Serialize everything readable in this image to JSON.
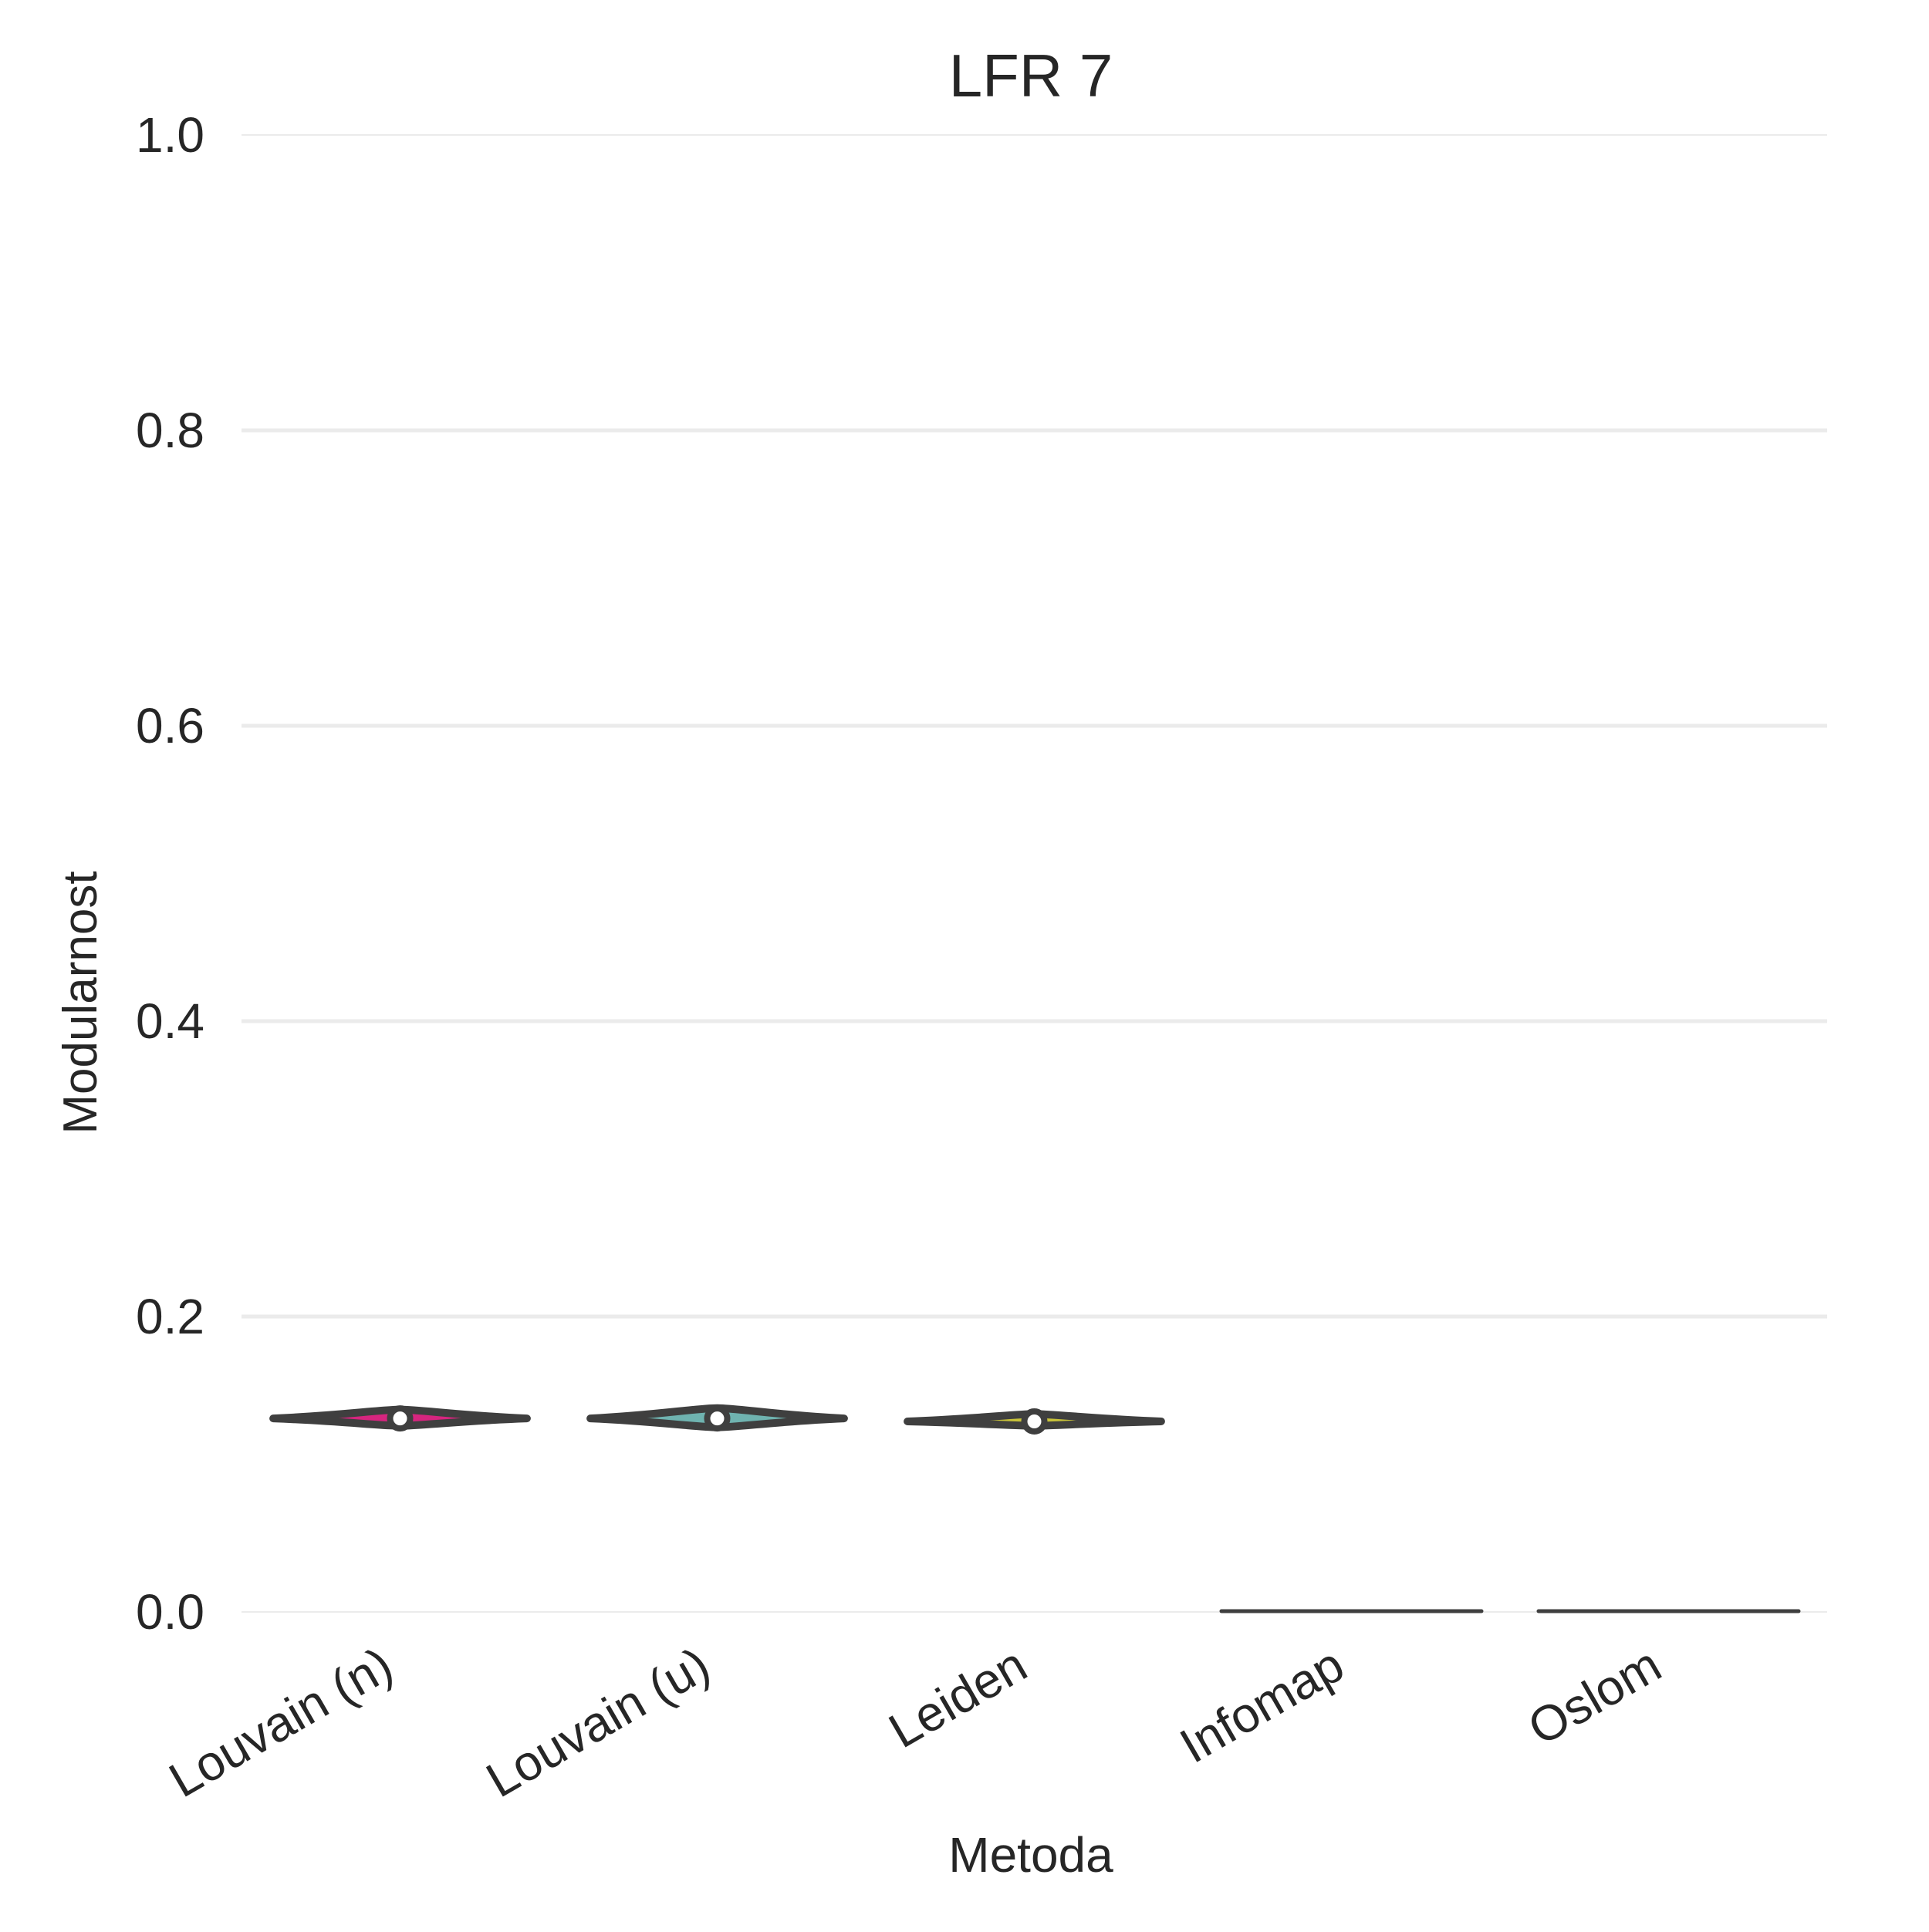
{
  "chart_data": {
    "type": "violin",
    "title": "LFR 7",
    "xlabel": "Metoda",
    "ylabel": "Modularnost",
    "ylim": [
      0,
      1.0
    ],
    "yticks": [
      "0.0",
      "0.2",
      "0.4",
      "0.6",
      "0.8",
      "1.0"
    ],
    "grid": "horizontal",
    "categories": [
      "Louvain (n)",
      "Louvain (u)",
      "Leiden",
      "Infomap",
      "Oslom"
    ],
    "series": [
      {
        "category": "Louvain (n)",
        "median": 0.131,
        "min": 0.126,
        "max": 0.137,
        "color": "#d6257f"
      },
      {
        "category": "Louvain (u)",
        "median": 0.131,
        "min": 0.125,
        "max": 0.138,
        "color": "#6fb3b0"
      },
      {
        "category": "Leiden",
        "median": 0.129,
        "min": 0.126,
        "max": 0.134,
        "color": "#c8c23a"
      },
      {
        "category": "Infomap",
        "median": 0.0,
        "min": 0.0,
        "max": 0.0,
        "color": "#3f3f3f"
      },
      {
        "category": "Oslom",
        "median": 0.0,
        "min": 0.0,
        "max": 0.0,
        "color": "#3f3f3f"
      }
    ]
  }
}
